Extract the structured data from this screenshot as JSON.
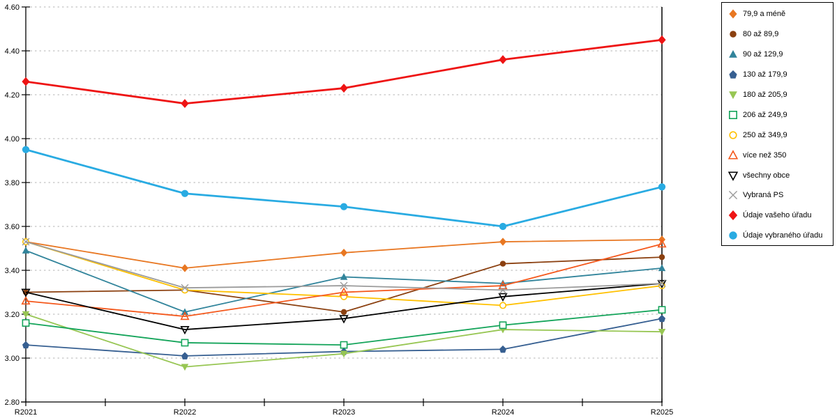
{
  "chart_data": {
    "type": "line",
    "title": "",
    "xlabel": "",
    "ylabel": "",
    "categories": [
      "R2021",
      "R2022",
      "R2023",
      "R2024",
      "R2025"
    ],
    "y_axis": {
      "min": 2.8,
      "max": 4.6,
      "step": 0.2,
      "tick_labels": [
        "2.80",
        "3.00",
        "3.20",
        "3.40",
        "3.60",
        "3.80",
        "4.00",
        "4.20",
        "4.40",
        "4.60"
      ]
    },
    "grid": "horizontal-dotted",
    "legend_position": "right",
    "series": [
      {
        "name": "79,9 a méně",
        "color": "#E87722",
        "marker": "diamond",
        "marker_fill": "solid",
        "line_width": 1.8,
        "marker_size": 5,
        "values": [
          3.53,
          3.41,
          3.48,
          3.53,
          3.54
        ]
      },
      {
        "name": "80 až 89,9",
        "color": "#8B4010",
        "marker": "circle",
        "marker_fill": "solid",
        "line_width": 1.8,
        "marker_size": 4.6,
        "values": [
          3.3,
          3.31,
          3.21,
          3.43,
          3.46
        ]
      },
      {
        "name": "90 až 129,9",
        "color": "#31849B",
        "marker": "triangle-up",
        "marker_fill": "solid",
        "line_width": 1.8,
        "marker_size": 5,
        "values": [
          3.49,
          3.21,
          3.37,
          3.34,
          3.41
        ]
      },
      {
        "name": "130 až 179,9",
        "color": "#365F91",
        "marker": "pentagon",
        "marker_fill": "solid",
        "line_width": 1.8,
        "marker_size": 5,
        "values": [
          3.06,
          3.01,
          3.03,
          3.04,
          3.18
        ]
      },
      {
        "name": "180 až 205,9",
        "color": "#97C653",
        "marker": "triangle-down",
        "marker_fill": "solid",
        "line_width": 1.8,
        "marker_size": 5,
        "values": [
          3.2,
          2.96,
          3.02,
          3.13,
          3.12
        ]
      },
      {
        "name": "206 až 249,9",
        "color": "#14A45A",
        "marker": "square",
        "marker_fill": "open",
        "line_width": 1.8,
        "marker_size": 4.6,
        "values": [
          3.16,
          3.07,
          3.06,
          3.15,
          3.22
        ]
      },
      {
        "name": "250 až 349,9",
        "color": "#FFC000",
        "marker": "circle",
        "marker_fill": "open",
        "line_width": 1.8,
        "marker_size": 4.6,
        "values": [
          3.53,
          3.31,
          3.28,
          3.24,
          3.33
        ]
      },
      {
        "name": "více než 350",
        "color": "#F4581C",
        "marker": "triangle-up",
        "marker_fill": "open",
        "line_width": 1.8,
        "marker_size": 5,
        "values": [
          3.26,
          3.19,
          3.3,
          3.33,
          3.52
        ]
      },
      {
        "name": "všechny obce",
        "color": "#000000",
        "marker": "triangle-down",
        "marker_fill": "open",
        "line_width": 1.8,
        "marker_size": 5,
        "values": [
          3.3,
          3.13,
          3.18,
          3.28,
          3.34
        ]
      },
      {
        "name": "Vybraná PS",
        "color": "#9B9B9B",
        "marker": "x",
        "marker_fill": "open",
        "line_width": 1.8,
        "marker_size": 5,
        "values": [
          3.53,
          3.32,
          3.33,
          3.31,
          3.34
        ]
      },
      {
        "name": "Údaje vašeho úřadu",
        "color": "#EE1414",
        "marker": "diamond",
        "marker_fill": "solid",
        "line_width": 2.8,
        "marker_size": 5.6,
        "values": [
          4.26,
          4.16,
          4.23,
          4.36,
          4.45
        ]
      },
      {
        "name": "Údaje vybraného úřadu",
        "color": "#29ABE2",
        "marker": "circle",
        "marker_fill": "solid",
        "line_width": 2.8,
        "marker_size": 5.6,
        "values": [
          3.95,
          3.75,
          3.69,
          3.6,
          3.78
        ]
      }
    ]
  },
  "colors": {
    "gridline": "#B3B3B3",
    "axis": "#000000",
    "background": "#FFFFFF"
  }
}
